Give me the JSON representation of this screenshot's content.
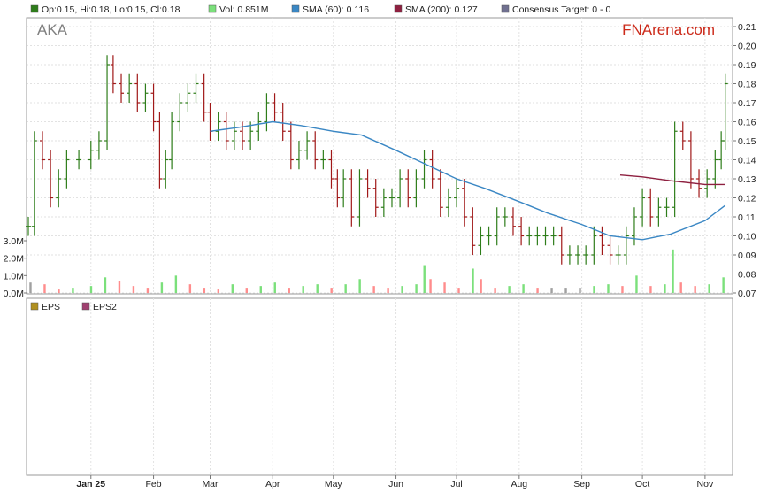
{
  "symbol": "AKA",
  "brand": "FNArena.com",
  "legend": {
    "ohlc": "Op:0.15, Hi:0.18, Lo:0.15, Cl:0.18",
    "vol": "Vol: 0.851M",
    "sma60": "SMA (60): 0.116",
    "sma200": "SMA (200): 0.127",
    "consensus": "Consensus Target: 0 - 0"
  },
  "eps_legend": {
    "eps": "EPS",
    "eps2": "EPS2"
  },
  "colors": {
    "up": "#2e7d1a",
    "down": "#a01818",
    "sma60": "#3a87c4",
    "sma200": "#8e2040",
    "vol_up": "#7be07b",
    "vol_down": "#ff8c8c",
    "vol_flat": "#a0a0a0",
    "eps": "#b09020",
    "eps2": "#a04070",
    "consensus": "#707090"
  },
  "chart_data": {
    "type": "line",
    "price_axis": {
      "ylim": [
        0.07,
        0.21
      ],
      "ticks": [
        "0.07",
        "0.08",
        "0.09",
        "0.10",
        "0.11",
        "0.12",
        "0.13",
        "0.14",
        "0.15",
        "0.16",
        "0.17",
        "0.18",
        "0.19",
        "0.20",
        "0.21"
      ]
    },
    "volume_axis": {
      "ylim": [
        0,
        3.0
      ],
      "ticks": [
        "0.0M",
        "1.0M",
        "2.0M",
        "3.0M"
      ]
    },
    "x_ticks": [
      "Jan 25",
      "Feb",
      "Mar",
      "Apr",
      "May",
      "Jun",
      "Jul",
      "Aug",
      "Sep",
      "Oct",
      "Nov"
    ],
    "x_tick_dates": [
      "2025-01-01",
      "2025-02-01",
      "2025-03-01",
      "2025-04-01",
      "2025-05-01",
      "2025-06-01",
      "2025-07-01",
      "2025-08-01",
      "2025-09-01",
      "2025-10-01",
      "2025-11-01"
    ],
    "x_range": [
      "2024-12-01",
      "2025-11-12"
    ],
    "close_series": [
      [
        "2024-12-01",
        0.105
      ],
      [
        "2024-12-04",
        0.15
      ],
      [
        "2024-12-08",
        0.14
      ],
      [
        "2024-12-12",
        0.12
      ],
      [
        "2024-12-16",
        0.13
      ],
      [
        "2024-12-20",
        0.14
      ],
      [
        "2024-12-26",
        0.14
      ],
      [
        "2025-01-01",
        0.145
      ],
      [
        "2025-01-05",
        0.15
      ],
      [
        "2025-01-09",
        0.19
      ],
      [
        "2025-01-12",
        0.18
      ],
      [
        "2025-01-16",
        0.175
      ],
      [
        "2025-01-20",
        0.18
      ],
      [
        "2025-01-24",
        0.17
      ],
      [
        "2025-01-28",
        0.175
      ],
      [
        "2025-02-01",
        0.16
      ],
      [
        "2025-02-04",
        0.13
      ],
      [
        "2025-02-07",
        0.14
      ],
      [
        "2025-02-10",
        0.16
      ],
      [
        "2025-02-14",
        0.17
      ],
      [
        "2025-02-18",
        0.175
      ],
      [
        "2025-02-22",
        0.18
      ],
      [
        "2025-02-26",
        0.165
      ],
      [
        "2025-03-01",
        0.155
      ],
      [
        "2025-03-05",
        0.16
      ],
      [
        "2025-03-09",
        0.15
      ],
      [
        "2025-03-13",
        0.155
      ],
      [
        "2025-03-17",
        0.15
      ],
      [
        "2025-03-21",
        0.155
      ],
      [
        "2025-03-25",
        0.16
      ],
      [
        "2025-03-29",
        0.17
      ],
      [
        "2025-04-02",
        0.165
      ],
      [
        "2025-04-06",
        0.155
      ],
      [
        "2025-04-10",
        0.14
      ],
      [
        "2025-04-14",
        0.145
      ],
      [
        "2025-04-18",
        0.15
      ],
      [
        "2025-04-22",
        0.14
      ],
      [
        "2025-04-26",
        0.14
      ],
      [
        "2025-04-30",
        0.13
      ],
      [
        "2025-05-03",
        0.12
      ],
      [
        "2025-05-06",
        0.13
      ],
      [
        "2025-05-10",
        0.11
      ],
      [
        "2025-05-14",
        0.13
      ],
      [
        "2025-05-18",
        0.125
      ],
      [
        "2025-05-22",
        0.115
      ],
      [
        "2025-05-26",
        0.12
      ],
      [
        "2025-05-30",
        0.12
      ],
      [
        "2025-06-03",
        0.13
      ],
      [
        "2025-06-07",
        0.12
      ],
      [
        "2025-06-11",
        0.13
      ],
      [
        "2025-06-15",
        0.14
      ],
      [
        "2025-06-19",
        0.13
      ],
      [
        "2025-06-23",
        0.115
      ],
      [
        "2025-06-27",
        0.12
      ],
      [
        "2025-07-01",
        0.125
      ],
      [
        "2025-07-05",
        0.11
      ],
      [
        "2025-07-09",
        0.095
      ],
      [
        "2025-07-13",
        0.1
      ],
      [
        "2025-07-17",
        0.1
      ],
      [
        "2025-07-21",
        0.11
      ],
      [
        "2025-07-25",
        0.11
      ],
      [
        "2025-07-29",
        0.105
      ],
      [
        "2025-08-02",
        0.1
      ],
      [
        "2025-08-06",
        0.1
      ],
      [
        "2025-08-10",
        0.1
      ],
      [
        "2025-08-14",
        0.1
      ],
      [
        "2025-08-18",
        0.1
      ],
      [
        "2025-08-22",
        0.09
      ],
      [
        "2025-08-26",
        0.09
      ],
      [
        "2025-08-30",
        0.09
      ],
      [
        "2025-09-03",
        0.09
      ],
      [
        "2025-09-07",
        0.1
      ],
      [
        "2025-09-11",
        0.095
      ],
      [
        "2025-09-15",
        0.09
      ],
      [
        "2025-09-19",
        0.09
      ],
      [
        "2025-09-23",
        0.1
      ],
      [
        "2025-09-27",
        0.11
      ],
      [
        "2025-10-01",
        0.12
      ],
      [
        "2025-10-05",
        0.11
      ],
      [
        "2025-10-09",
        0.115
      ],
      [
        "2025-10-13",
        0.115
      ],
      [
        "2025-10-17",
        0.155
      ],
      [
        "2025-10-21",
        0.15
      ],
      [
        "2025-10-25",
        0.13
      ],
      [
        "2025-10-29",
        0.125
      ],
      [
        "2025-11-02",
        0.13
      ],
      [
        "2025-11-06",
        0.14
      ],
      [
        "2025-11-09",
        0.15
      ],
      [
        "2025-11-11",
        0.18
      ]
    ],
    "sma60": [
      [
        "2025-03-01",
        0.155
      ],
      [
        "2025-03-15",
        0.157
      ],
      [
        "2025-04-01",
        0.16
      ],
      [
        "2025-04-15",
        0.158
      ],
      [
        "2025-05-01",
        0.155
      ],
      [
        "2025-05-15",
        0.153
      ],
      [
        "2025-06-01",
        0.145
      ],
      [
        "2025-06-15",
        0.138
      ],
      [
        "2025-07-01",
        0.13
      ],
      [
        "2025-07-15",
        0.125
      ],
      [
        "2025-08-01",
        0.118
      ],
      [
        "2025-08-15",
        0.112
      ],
      [
        "2025-09-01",
        0.106
      ],
      [
        "2025-09-15",
        0.1
      ],
      [
        "2025-10-01",
        0.098
      ],
      [
        "2025-10-15",
        0.101
      ],
      [
        "2025-11-01",
        0.108
      ],
      [
        "2025-11-11",
        0.116
      ]
    ],
    "sma200": [
      [
        "2025-09-20",
        0.132
      ],
      [
        "2025-10-01",
        0.131
      ],
      [
        "2025-10-15",
        0.129
      ],
      [
        "2025-11-01",
        0.127
      ],
      [
        "2025-11-11",
        0.127
      ]
    ],
    "volume": [
      [
        "2024-12-02",
        0.6
      ],
      [
        "2024-12-09",
        0.5
      ],
      [
        "2024-12-16",
        0.2
      ],
      [
        "2024-12-23",
        0.3
      ],
      [
        "2025-01-01",
        0.4
      ],
      [
        "2025-01-08",
        0.9
      ],
      [
        "2025-01-15",
        0.7
      ],
      [
        "2025-01-22",
        0.4
      ],
      [
        "2025-01-29",
        0.3
      ],
      [
        "2025-02-05",
        0.6
      ],
      [
        "2025-02-12",
        1.0
      ],
      [
        "2025-02-19",
        0.5
      ],
      [
        "2025-02-26",
        0.3
      ],
      [
        "2025-03-05",
        0.2
      ],
      [
        "2025-03-12",
        0.5
      ],
      [
        "2025-03-19",
        0.3
      ],
      [
        "2025-03-26",
        0.4
      ],
      [
        "2025-04-02",
        0.6
      ],
      [
        "2025-04-09",
        0.3
      ],
      [
        "2025-04-16",
        0.4
      ],
      [
        "2025-04-23",
        0.5
      ],
      [
        "2025-04-30",
        0.3
      ],
      [
        "2025-05-07",
        0.5
      ],
      [
        "2025-05-14",
        0.8
      ],
      [
        "2025-05-21",
        0.4
      ],
      [
        "2025-05-28",
        0.3
      ],
      [
        "2025-06-04",
        0.4
      ],
      [
        "2025-06-11",
        0.5
      ],
      [
        "2025-06-15",
        1.6
      ],
      [
        "2025-06-18",
        0.8
      ],
      [
        "2025-06-25",
        0.6
      ],
      [
        "2025-07-02",
        0.3
      ],
      [
        "2025-07-09",
        1.4
      ],
      [
        "2025-07-13",
        0.8
      ],
      [
        "2025-07-20",
        0.3
      ],
      [
        "2025-07-27",
        0.4
      ],
      [
        "2025-08-03",
        0.5
      ],
      [
        "2025-08-10",
        0.3
      ],
      [
        "2025-08-17",
        0.3
      ],
      [
        "2025-08-24",
        0.3
      ],
      [
        "2025-08-31",
        0.3
      ],
      [
        "2025-09-07",
        0.4
      ],
      [
        "2025-09-14",
        0.5
      ],
      [
        "2025-09-21",
        0.4
      ],
      [
        "2025-09-28",
        1.0
      ],
      [
        "2025-10-05",
        0.4
      ],
      [
        "2025-10-12",
        0.5
      ],
      [
        "2025-10-16",
        2.5
      ],
      [
        "2025-10-20",
        0.6
      ],
      [
        "2025-10-27",
        0.4
      ],
      [
        "2025-11-03",
        0.5
      ],
      [
        "2025-11-10",
        0.9
      ]
    ]
  }
}
